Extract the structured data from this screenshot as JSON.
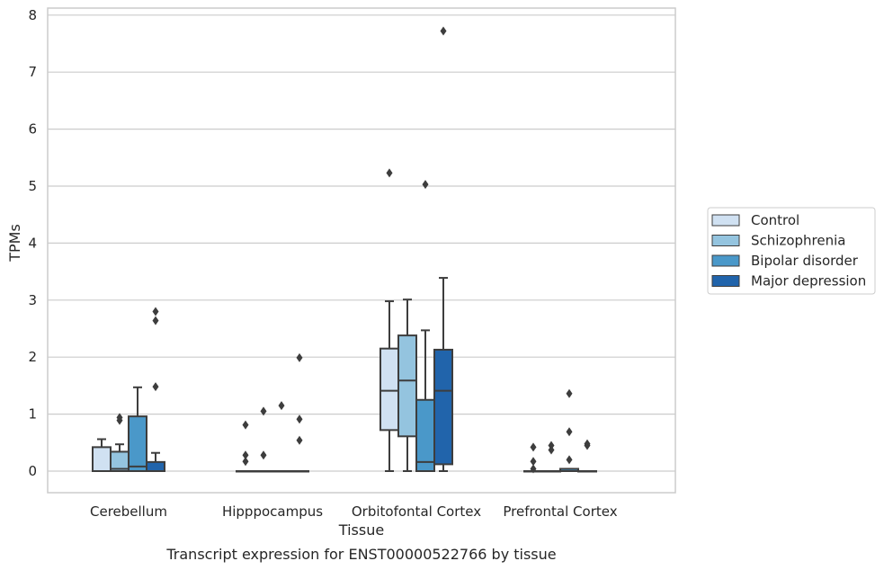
{
  "chart_data": {
    "type": "box",
    "title": "",
    "caption": "Transcript expression for ENST00000522766 by tissue",
    "xlabel": "Tissue",
    "ylabel": "TPMs",
    "ylim": [
      -0.38,
      8.12
    ],
    "yticks": [
      0,
      1,
      2,
      3,
      4,
      5,
      6,
      7,
      8
    ],
    "grid": "horizontal",
    "legend_position": "right",
    "categories": [
      "Cerebellum",
      "Hipppocampus",
      "Orbitofontal Cortex",
      "Prefrontal Cortex"
    ],
    "series": [
      {
        "name": "Control",
        "color": "#d0e1f2",
        "boxes": [
          {
            "whislo": 0,
            "q1": 0,
            "med": 0,
            "q3": 0.42,
            "whishi": 0.56,
            "fliers": []
          },
          {
            "whislo": 0,
            "q1": 0,
            "med": 0,
            "q3": 0,
            "whishi": 0,
            "fliers": [
              0.81,
              0.28,
              0.17
            ]
          },
          {
            "whislo": 0,
            "q1": 0.72,
            "med": 1.41,
            "q3": 2.15,
            "whishi": 2.98,
            "fliers": [
              5.23
            ]
          },
          {
            "whislo": 0,
            "q1": 0,
            "med": 0,
            "q3": 0,
            "whishi": 0,
            "fliers": [
              0.42,
              0.17,
              0.04
            ]
          }
        ]
      },
      {
        "name": "Schizophrenia",
        "color": "#94c4df",
        "boxes": [
          {
            "whislo": 0,
            "q1": 0,
            "med": 0.04,
            "q3": 0.34,
            "whishi": 0.47,
            "fliers": [
              0.94,
              0.89
            ]
          },
          {
            "whislo": 0,
            "q1": 0,
            "med": 0,
            "q3": 0,
            "whishi": 0,
            "fliers": [
              1.05,
              0.28
            ]
          },
          {
            "whislo": 0,
            "q1": 0.61,
            "med": 1.59,
            "q3": 2.38,
            "whishi": 3.01,
            "fliers": []
          },
          {
            "whislo": 0,
            "q1": 0,
            "med": 0,
            "q3": 0,
            "whishi": 0,
            "fliers": [
              0.45,
              0.37
            ]
          }
        ]
      },
      {
        "name": "Bipolar disorder",
        "color": "#4a98c9",
        "boxes": [
          {
            "whislo": 0,
            "q1": 0,
            "med": 0.08,
            "q3": 0.96,
            "whishi": 1.47,
            "fliers": []
          },
          {
            "whislo": 0,
            "q1": 0,
            "med": 0,
            "q3": 0,
            "whishi": 0,
            "fliers": [
              1.15
            ]
          },
          {
            "whislo": 0,
            "q1": 0,
            "med": 0.16,
            "q3": 1.25,
            "whishi": 2.47,
            "fliers": [
              5.03
            ]
          },
          {
            "whislo": 0,
            "q1": 0,
            "med": 0,
            "q3": 0.04,
            "whishi": 0.04,
            "fliers": [
              1.36,
              0.69,
              0.2
            ]
          }
        ]
      },
      {
        "name": "Major depression",
        "color": "#2164ab",
        "boxes": [
          {
            "whislo": 0,
            "q1": 0,
            "med": 0,
            "q3": 0.16,
            "whishi": 0.32,
            "fliers": [
              2.8,
              2.64,
              1.48
            ]
          },
          {
            "whislo": 0,
            "q1": 0,
            "med": 0,
            "q3": 0,
            "whishi": 0,
            "fliers": [
              1.99,
              0.91,
              0.54
            ]
          },
          {
            "whislo": 0,
            "q1": 0.12,
            "med": 1.41,
            "q3": 2.13,
            "whishi": 3.39,
            "fliers": [
              7.72
            ]
          },
          {
            "whislo": 0,
            "q1": 0,
            "med": 0,
            "q3": 0,
            "whishi": 0,
            "fliers": [
              0.48,
              0.45
            ]
          }
        ]
      }
    ]
  }
}
